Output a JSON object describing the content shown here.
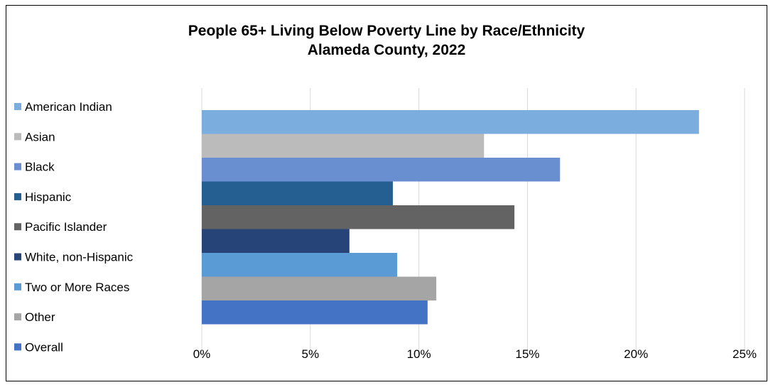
{
  "chart_data": {
    "type": "bar",
    "orientation": "horizontal",
    "title": "People 65+ Living Below Poverty Line by Race/Ethnicity",
    "subtitle": "Alameda County, 2022",
    "categories": [
      "American Indian",
      "Asian",
      "Black",
      "Hispanic",
      "Pacific Islander",
      "White, non-Hispanic",
      "Two or More Races",
      "Other",
      "Overall"
    ],
    "values": [
      22.9,
      13.0,
      16.5,
      8.8,
      14.4,
      6.8,
      9.0,
      10.8,
      10.4
    ],
    "colors": [
      "#7BAEDF",
      "#BBBBBB",
      "#6A8FD0",
      "#255E91",
      "#636363",
      "#264478",
      "#5B9BD5",
      "#A5A5A5",
      "#4472C4"
    ],
    "xlim": [
      0,
      25
    ],
    "x_ticks": [
      0,
      5,
      10,
      15,
      20,
      25
    ],
    "x_tick_labels": [
      "0%",
      "5%",
      "10%",
      "15%",
      "20%",
      "25%"
    ],
    "grid": true,
    "legend_position": "left"
  }
}
